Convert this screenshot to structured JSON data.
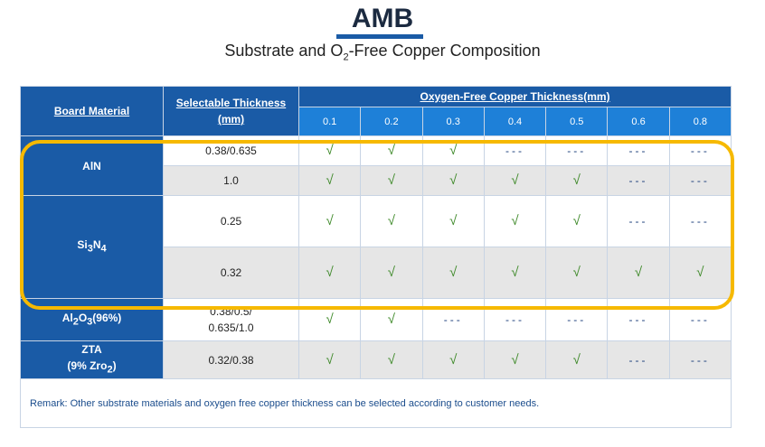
{
  "title": "AMB",
  "subtitle": [
    "Substrate and O",
    "2",
    "-Free Copper Composition"
  ],
  "table": {
    "headers": {
      "board_material": "Board Material",
      "selectable_thickness": "Selectable Thickness\n(mm)",
      "copper_thickness": "Oxygen-Free Copper Thickness(mm)",
      "columns": [
        "0.1",
        "0.2",
        "0.3",
        "0.4",
        "0.5",
        "0.6",
        "0.8"
      ]
    },
    "groups": [
      {
        "material": [
          "AlN"
        ],
        "rows": [
          {
            "thickness": "0.38/0.635",
            "cells": [
              "√",
              "√",
              "√",
              "---",
              "---",
              "---",
              "---"
            ]
          },
          {
            "thickness": "1.0",
            "cells": [
              "√",
              "√",
              "√",
              "√",
              "√",
              "---",
              "---"
            ]
          }
        ]
      },
      {
        "material": [
          "Si",
          "3",
          "N",
          "4"
        ],
        "rows": [
          {
            "thickness": "0.25",
            "cells": [
              "√",
              "√",
              "√",
              "√",
              "√",
              "---",
              "---"
            ]
          },
          {
            "thickness": "0.32",
            "cells": [
              "√",
              "√",
              "√",
              "√",
              "√",
              "√",
              "√"
            ]
          }
        ]
      },
      {
        "material": [
          "Al",
          "2",
          "O",
          "3",
          "(96%)"
        ],
        "rows": [
          {
            "thickness": "0.38/0.5/\n0.635/1.0",
            "cells": [
              "√",
              "√",
              "---",
              "---",
              "---",
              "---",
              "---"
            ]
          }
        ]
      },
      {
        "material": [
          "ZTA\n(9% Zro",
          "2",
          ")"
        ],
        "rows": [
          {
            "thickness": "0.32/0.38",
            "cells": [
              "√",
              "√",
              "√",
              "√",
              "√",
              "---",
              "---"
            ]
          }
        ]
      }
    ],
    "remark": "Remark: Other substrate materials and oxygen free copper thickness can be selected according to customer needs."
  }
}
